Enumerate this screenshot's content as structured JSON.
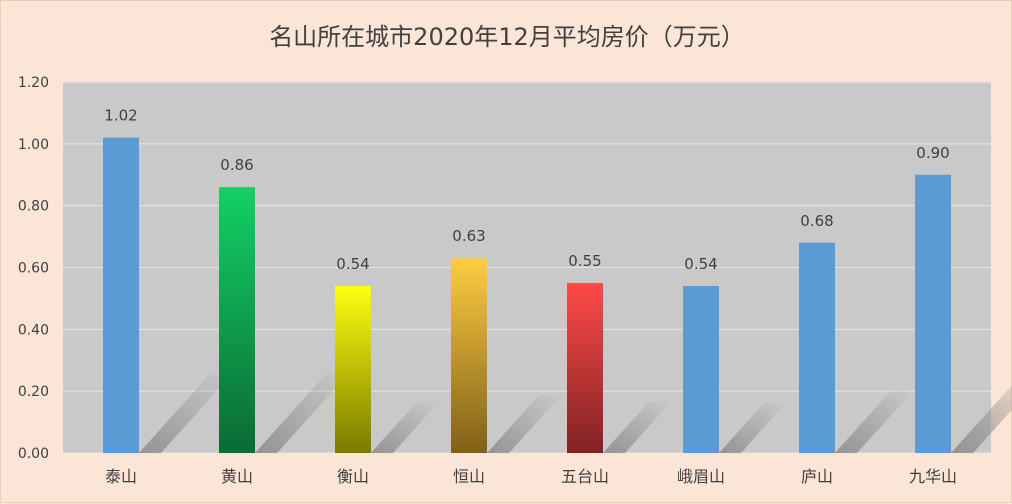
{
  "chart_data": {
    "type": "bar",
    "title": "名山所在城市2020年12月平均房价（万元）",
    "categories": [
      "泰山",
      "黄山",
      "衡山",
      "恒山",
      "五台山",
      "峨眉山",
      "庐山",
      "九华山"
    ],
    "values": [
      1.02,
      0.86,
      0.54,
      0.63,
      0.55,
      0.54,
      0.68,
      0.9
    ],
    "data_labels": [
      "1.02",
      "0.86",
      "0.54",
      "0.63",
      "0.55",
      "0.54",
      "0.68",
      "0.90"
    ],
    "ylim": [
      0,
      1.2
    ],
    "yticks": [
      "0.00",
      "0.20",
      "0.40",
      "0.60",
      "0.80",
      "1.00",
      "1.20"
    ],
    "grid": true,
    "legend": "none",
    "bar_fills": [
      {
        "top": "#5b9bd5",
        "bottom": "#5b9bd5"
      },
      {
        "top": "#12d165",
        "bottom": "#0a6b34"
      },
      {
        "top": "#ffff10",
        "bottom": "#7a7a00"
      },
      {
        "top": "#ffcc40",
        "bottom": "#7f6018"
      },
      {
        "top": "#ff4a48",
        "bottom": "#7f2224"
      },
      {
        "top": "#5b9bd5",
        "bottom": "#5b9bd5"
      },
      {
        "top": "#5b9bd5",
        "bottom": "#5b9bd5"
      },
      {
        "top": "#5b9bd5",
        "bottom": "#5b9bd5"
      }
    ],
    "colors": {
      "background": "#fbe5d6",
      "plot_area": "#c9c9c9",
      "gridline": "#e6e6e6",
      "text": "#404040"
    }
  }
}
